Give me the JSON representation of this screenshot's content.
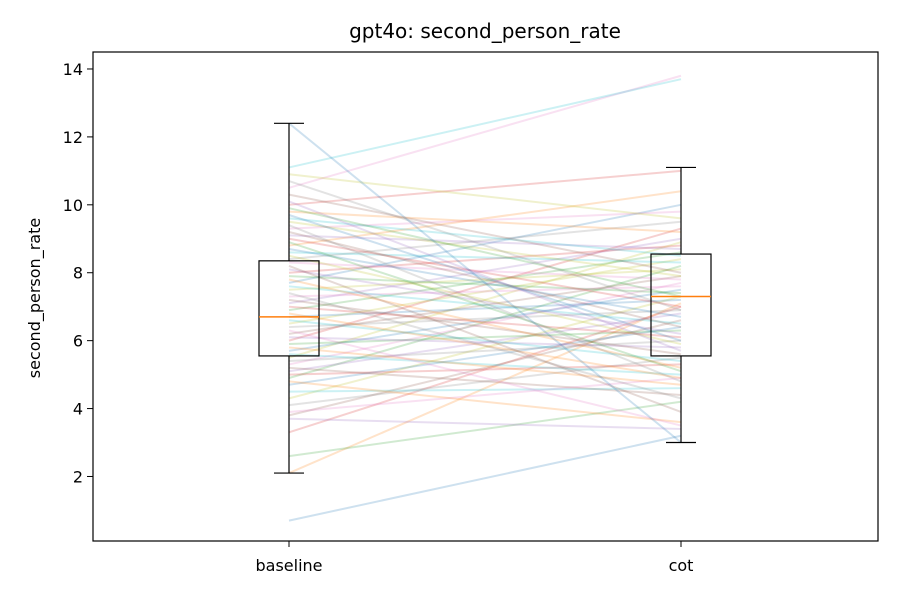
{
  "chart_data": {
    "type": "box",
    "title": "gpt4o: second_person_rate",
    "xlabel": "",
    "ylabel": "second_person_rate",
    "categories": [
      "baseline",
      "cot"
    ],
    "ylim": [
      0.1,
      14.5
    ],
    "yticks": [
      2,
      4,
      6,
      8,
      10,
      12,
      14
    ],
    "grid": false,
    "boxes": [
      {
        "category": "baseline",
        "whisker_low": 2.1,
        "q1": 5.55,
        "median": 6.7,
        "q3": 8.35,
        "whisker_high": 12.4
      },
      {
        "category": "cot",
        "whisker_low": 3.0,
        "q1": 5.55,
        "median": 7.3,
        "q3": 8.55,
        "whisker_high": 11.1
      }
    ],
    "pairs": [
      [
        0.7,
        3.2
      ],
      [
        2.1,
        7.1
      ],
      [
        2.6,
        4.2
      ],
      [
        3.3,
        7.0
      ],
      [
        3.7,
        3.4
      ],
      [
        3.8,
        6.6
      ],
      [
        3.9,
        4.9
      ],
      [
        4.1,
        5.5
      ],
      [
        4.3,
        7.3
      ],
      [
        4.5,
        4.6
      ],
      [
        4.7,
        6.4
      ],
      [
        4.8,
        3.6
      ],
      [
        4.9,
        8.2
      ],
      [
        5.0,
        5.3
      ],
      [
        5.1,
        6.8
      ],
      [
        5.2,
        4.4
      ],
      [
        5.3,
        7.7
      ],
      [
        5.4,
        6.0
      ],
      [
        5.5,
        8.9
      ],
      [
        5.6,
        5.0
      ],
      [
        5.7,
        7.5
      ],
      [
        5.8,
        4.7
      ],
      [
        5.9,
        6.3
      ],
      [
        6.0,
        9.3
      ],
      [
        6.1,
        5.8
      ],
      [
        6.2,
        7.9
      ],
      [
        6.3,
        3.5
      ],
      [
        6.4,
        6.9
      ],
      [
        6.5,
        8.4
      ],
      [
        6.6,
        5.4
      ],
      [
        6.7,
        7.2
      ],
      [
        6.8,
        4.9
      ],
      [
        6.9,
        8.6
      ],
      [
        7.0,
        6.1
      ],
      [
        7.1,
        9.0
      ],
      [
        7.2,
        5.6
      ],
      [
        7.3,
        7.6
      ],
      [
        7.4,
        4.3
      ],
      [
        7.5,
        8.1
      ],
      [
        7.6,
        6.5
      ],
      [
        7.7,
        10.0
      ],
      [
        7.8,
        5.2
      ],
      [
        7.9,
        7.4
      ],
      [
        8.0,
        8.8
      ],
      [
        8.1,
        6.2
      ],
      [
        8.2,
        3.9
      ],
      [
        8.3,
        7.8
      ],
      [
        8.4,
        9.5
      ],
      [
        8.5,
        5.9
      ],
      [
        8.6,
        8.3
      ],
      [
        8.7,
        6.7
      ],
      [
        8.8,
        10.4
      ],
      [
        8.9,
        5.1
      ],
      [
        9.0,
        7.0
      ],
      [
        9.1,
        8.7
      ],
      [
        9.2,
        6.4
      ],
      [
        9.3,
        9.8
      ],
      [
        9.4,
        4.8
      ],
      [
        9.5,
        7.9
      ],
      [
        9.6,
        8.5
      ],
      [
        9.7,
        6.0
      ],
      [
        9.8,
        9.2
      ],
      [
        9.9,
        7.3
      ],
      [
        10.0,
        11.0
      ],
      [
        10.1,
        5.7
      ],
      [
        10.3,
        8.0
      ],
      [
        10.5,
        13.8
      ],
      [
        10.7,
        6.9
      ],
      [
        10.9,
        9.6
      ],
      [
        11.1,
        13.7
      ],
      [
        12.4,
        3.0
      ]
    ]
  }
}
